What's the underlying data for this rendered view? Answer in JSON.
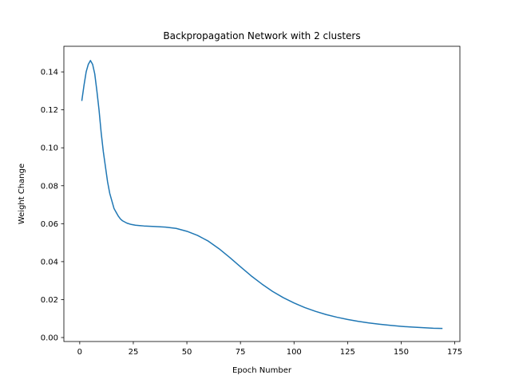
{
  "chart_data": {
    "type": "line",
    "title": "Backpropagation Network with 2 clusters",
    "xlabel": "Epoch Number",
    "ylabel": "Weight Change",
    "xlim": [
      -7.4,
      177.4
    ],
    "ylim": [
      -0.0021,
      0.1535
    ],
    "xticks": [
      0,
      25,
      50,
      75,
      100,
      125,
      150,
      175
    ],
    "xtick_labels": [
      "0",
      "25",
      "50",
      "75",
      "100",
      "125",
      "150",
      "175"
    ],
    "yticks": [
      0.0,
      0.02,
      0.04,
      0.06,
      0.08,
      0.1,
      0.12,
      0.14
    ],
    "ytick_labels": [
      "0.00",
      "0.02",
      "0.04",
      "0.06",
      "0.08",
      "0.10",
      "0.12",
      "0.14"
    ],
    "grid": false,
    "series": [
      {
        "color": "#1f77b4",
        "x": [
          1,
          2,
          3,
          4,
          5,
          6,
          7,
          8,
          9,
          10,
          11,
          12,
          13,
          14,
          15,
          16,
          17,
          18,
          19,
          20,
          22,
          24,
          26,
          28,
          30,
          35,
          40,
          45,
          50,
          55,
          60,
          65,
          70,
          75,
          80,
          85,
          90,
          95,
          100,
          105,
          110,
          115,
          120,
          125,
          130,
          135,
          140,
          145,
          150,
          155,
          160,
          165,
          169
        ],
        "y": [
          0.125,
          0.133,
          0.14,
          0.144,
          0.146,
          0.144,
          0.139,
          0.13,
          0.12,
          0.108,
          0.098,
          0.09,
          0.082,
          0.076,
          0.072,
          0.068,
          0.066,
          0.064,
          0.0625,
          0.0615,
          0.0603,
          0.0596,
          0.0592,
          0.059,
          0.0588,
          0.0585,
          0.0582,
          0.0575,
          0.056,
          0.0538,
          0.0508,
          0.0468,
          0.0422,
          0.0373,
          0.0325,
          0.0282,
          0.0243,
          0.021,
          0.0182,
          0.0158,
          0.0138,
          0.0121,
          0.0107,
          0.0095,
          0.0085,
          0.0077,
          0.007,
          0.0064,
          0.0059,
          0.0055,
          0.0052,
          0.0049,
          0.0048
        ]
      }
    ]
  }
}
